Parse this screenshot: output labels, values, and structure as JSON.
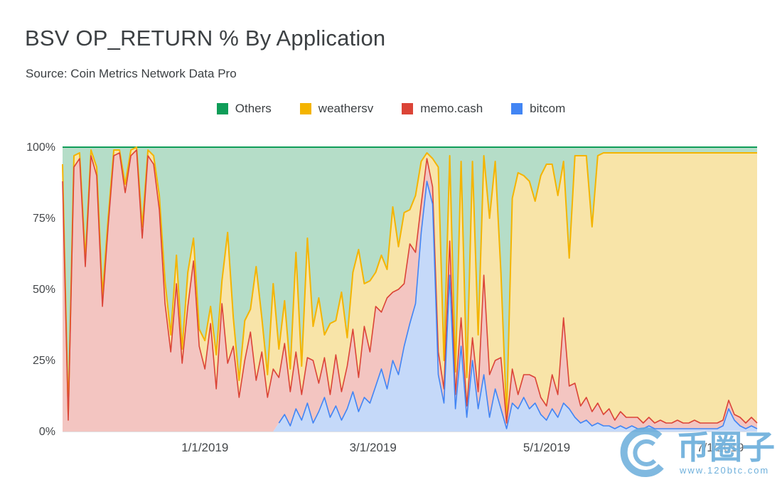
{
  "title": "BSV OP_RETURN % By Application",
  "source": "Source: Coin Metrics Network Data Pro",
  "legend": [
    {
      "label": "Others",
      "color": "#0f9d58"
    },
    {
      "label": "weathersv",
      "color": "#f4b400"
    },
    {
      "label": "memo.cash",
      "color": "#db4437"
    },
    {
      "label": "bitcom",
      "color": "#4285f4"
    }
  ],
  "watermark": {
    "text": "币圈子",
    "subtext": "www.120btc.com"
  },
  "chart_data": {
    "type": "area",
    "stacked": true,
    "percent_stacked": true,
    "title": "BSV OP_RETURN % By Application",
    "ylim": [
      0,
      100
    ],
    "grid": true,
    "legend_position": "top-center",
    "y_ticks": [
      {
        "label": "0%",
        "value": 0
      },
      {
        "label": "25%",
        "value": 25
      },
      {
        "label": "50%",
        "value": 50
      },
      {
        "label": "75%",
        "value": 75
      },
      {
        "label": "100%",
        "value": 100
      }
    ],
    "x_ticks": [
      {
        "label": "1/1/2019",
        "pos": 0.205
      },
      {
        "label": "3/1/2019",
        "pos": 0.447
      },
      {
        "label": "5/1/2019",
        "pos": 0.697
      },
      {
        "label": "7/1/2019",
        "pos": 0.947
      }
    ],
    "series": [
      {
        "name": "bitcom",
        "color": "#4285f4",
        "fill": "#c5d9f9",
        "values": [
          0,
          0,
          0,
          0,
          0,
          0,
          0,
          0,
          0,
          0,
          0,
          0,
          0,
          0,
          0,
          0,
          0,
          0,
          0,
          0,
          0,
          0,
          0,
          0,
          0,
          0,
          0,
          0,
          0,
          0,
          0,
          0,
          0,
          0,
          0,
          0,
          0,
          0,
          3,
          6,
          2,
          8,
          4,
          10,
          3,
          7,
          12,
          5,
          9,
          4,
          8,
          14,
          7,
          12,
          10,
          16,
          22,
          15,
          25,
          20,
          30,
          38,
          45,
          70,
          88,
          80,
          20,
          10,
          55,
          8,
          30,
          5,
          25,
          8,
          20,
          5,
          15,
          8,
          1,
          10,
          8,
          12,
          8,
          10,
          6,
          4,
          8,
          5,
          10,
          8,
          5,
          3,
          4,
          2,
          3,
          2,
          2,
          1,
          2,
          1,
          2,
          1,
          1,
          2,
          1,
          1,
          1,
          1,
          1,
          1,
          1,
          1,
          1,
          1,
          1,
          1,
          2,
          8,
          4,
          2,
          1,
          2,
          1
        ]
      },
      {
        "name": "memo.cash",
        "color": "#db4437",
        "fill": "#f3c5c1",
        "values": [
          88,
          4,
          93,
          96,
          58,
          97,
          90,
          44,
          72,
          97,
          98,
          84,
          97,
          99,
          68,
          97,
          94,
          78,
          45,
          28,
          52,
          24,
          44,
          60,
          30,
          22,
          38,
          15,
          45,
          24,
          30,
          12,
          25,
          35,
          18,
          28,
          12,
          22,
          16,
          25,
          12,
          20,
          9,
          16,
          22,
          10,
          14,
          8,
          18,
          10,
          15,
          22,
          12,
          25,
          18,
          28,
          20,
          32,
          24,
          30,
          22,
          28,
          18,
          10,
          8,
          6,
          8,
          5,
          12,
          5,
          10,
          4,
          8,
          6,
          35,
          15,
          10,
          18,
          2,
          12,
          5,
          8,
          12,
          9,
          6,
          5,
          12,
          8,
          30,
          8,
          12,
          6,
          8,
          5,
          7,
          4,
          6,
          3,
          5,
          4,
          3,
          4,
          2,
          3,
          2,
          3,
          2,
          2,
          3,
          2,
          2,
          3,
          2,
          2,
          2,
          2,
          2,
          3,
          2,
          3,
          2,
          3,
          2
        ]
      },
      {
        "name": "weathersv",
        "color": "#f4b400",
        "fill": "#f8e4a8",
        "values": [
          6,
          2,
          4,
          2,
          3,
          2,
          3,
          4,
          3,
          2,
          1,
          3,
          2,
          1,
          4,
          2,
          3,
          5,
          8,
          6,
          10,
          5,
          12,
          8,
          6,
          10,
          6,
          12,
          8,
          46,
          10,
          6,
          14,
          8,
          40,
          12,
          8,
          30,
          10,
          15,
          8,
          35,
          10,
          42,
          12,
          30,
          8,
          25,
          12,
          35,
          10,
          20,
          45,
          15,
          25,
          12,
          20,
          10,
          30,
          15,
          25,
          12,
          20,
          15,
          2,
          10,
          65,
          10,
          30,
          8,
          55,
          10,
          62,
          20,
          42,
          55,
          70,
          30,
          2,
          60,
          78,
          70,
          68,
          62,
          78,
          85,
          74,
          70,
          55,
          45,
          80,
          88,
          85,
          65,
          87,
          92,
          90,
          94,
          91,
          93,
          93,
          93,
          95,
          93,
          95,
          94,
          95,
          95,
          94,
          95,
          95,
          94,
          95,
          95,
          95,
          95,
          94,
          87,
          92,
          93,
          95,
          93,
          95
        ]
      },
      {
        "name": "Others",
        "color": "#0f9d58",
        "fill": "#b5ddc8",
        "remainder_to_100": true
      }
    ]
  }
}
